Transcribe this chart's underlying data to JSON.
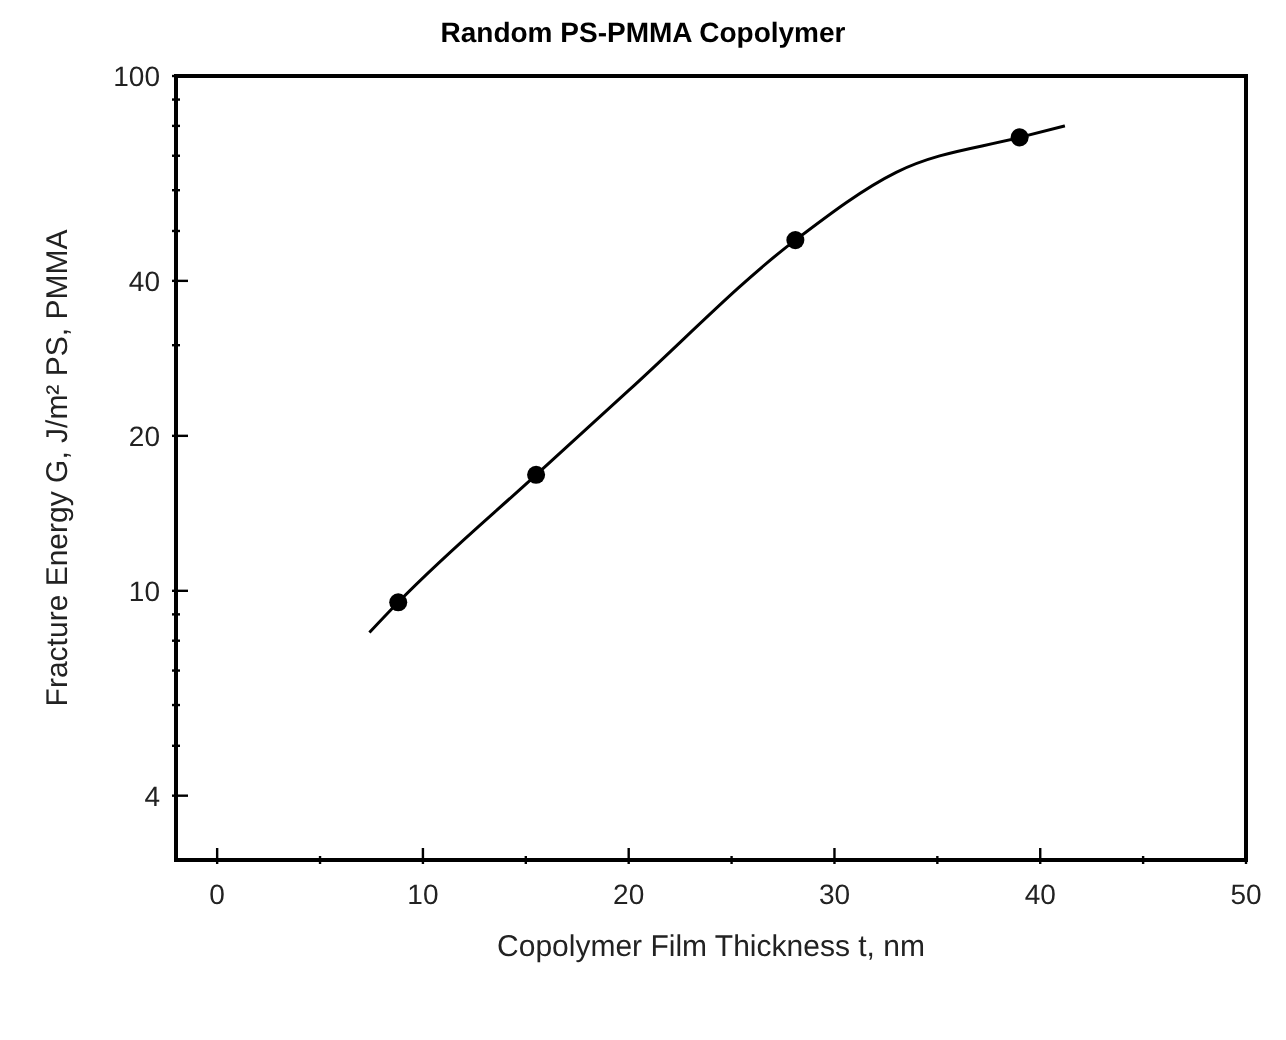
{
  "chart_data": {
    "type": "scatter",
    "title": "Random PS-PMMA Copolymer",
    "xlabel": "Copolymer Film Thickness t, nm",
    "ylabel": "Fracture Energy G, J/m²   PS, PMMA",
    "log": "y",
    "xlim": [
      -2,
      50
    ],
    "xticks": [
      0,
      {
        "value": 5,
        "label": null
      },
      10,
      {
        "value": 15,
        "label": null
      },
      20,
      {
        "value": 25,
        "label": null
      },
      30,
      {
        "value": 35,
        "label": null
      },
      40,
      {
        "value": 45,
        "label": null
      },
      50
    ],
    "ylim": [
      3,
      100
    ],
    "yticks": [
      4,
      {
        "value": 5,
        "label": null
      },
      {
        "value": 6,
        "label": null
      },
      {
        "value": 7,
        "label": null
      },
      {
        "value": 8,
        "label": null
      },
      {
        "value": 9,
        "label": null
      },
      10,
      20,
      {
        "value": 30,
        "label": null
      },
      40,
      {
        "value": 50,
        "label": null
      },
      {
        "value": 60,
        "label": null
      },
      {
        "value": 70,
        "label": null
      },
      {
        "value": 80,
        "label": null
      },
      {
        "value": 90,
        "label": null
      },
      100
    ],
    "series": [
      {
        "type": "scatter",
        "color": "#000000",
        "marker": "circle",
        "x": [
          8.8,
          15.5,
          28.1,
          39.0
        ],
        "values": [
          9.5,
          16.8,
          48,
          76
        ]
      },
      {
        "type": "line",
        "color": "#000000",
        "marker": "none",
        "line_style": "solid",
        "x": [
          7.4,
          8.8,
          15.5,
          20,
          28.1,
          33,
          39.0,
          41.2
        ],
        "values": [
          8.3,
          9.5,
          16.8,
          24.5,
          48,
          65,
          76,
          80
        ]
      }
    ]
  }
}
